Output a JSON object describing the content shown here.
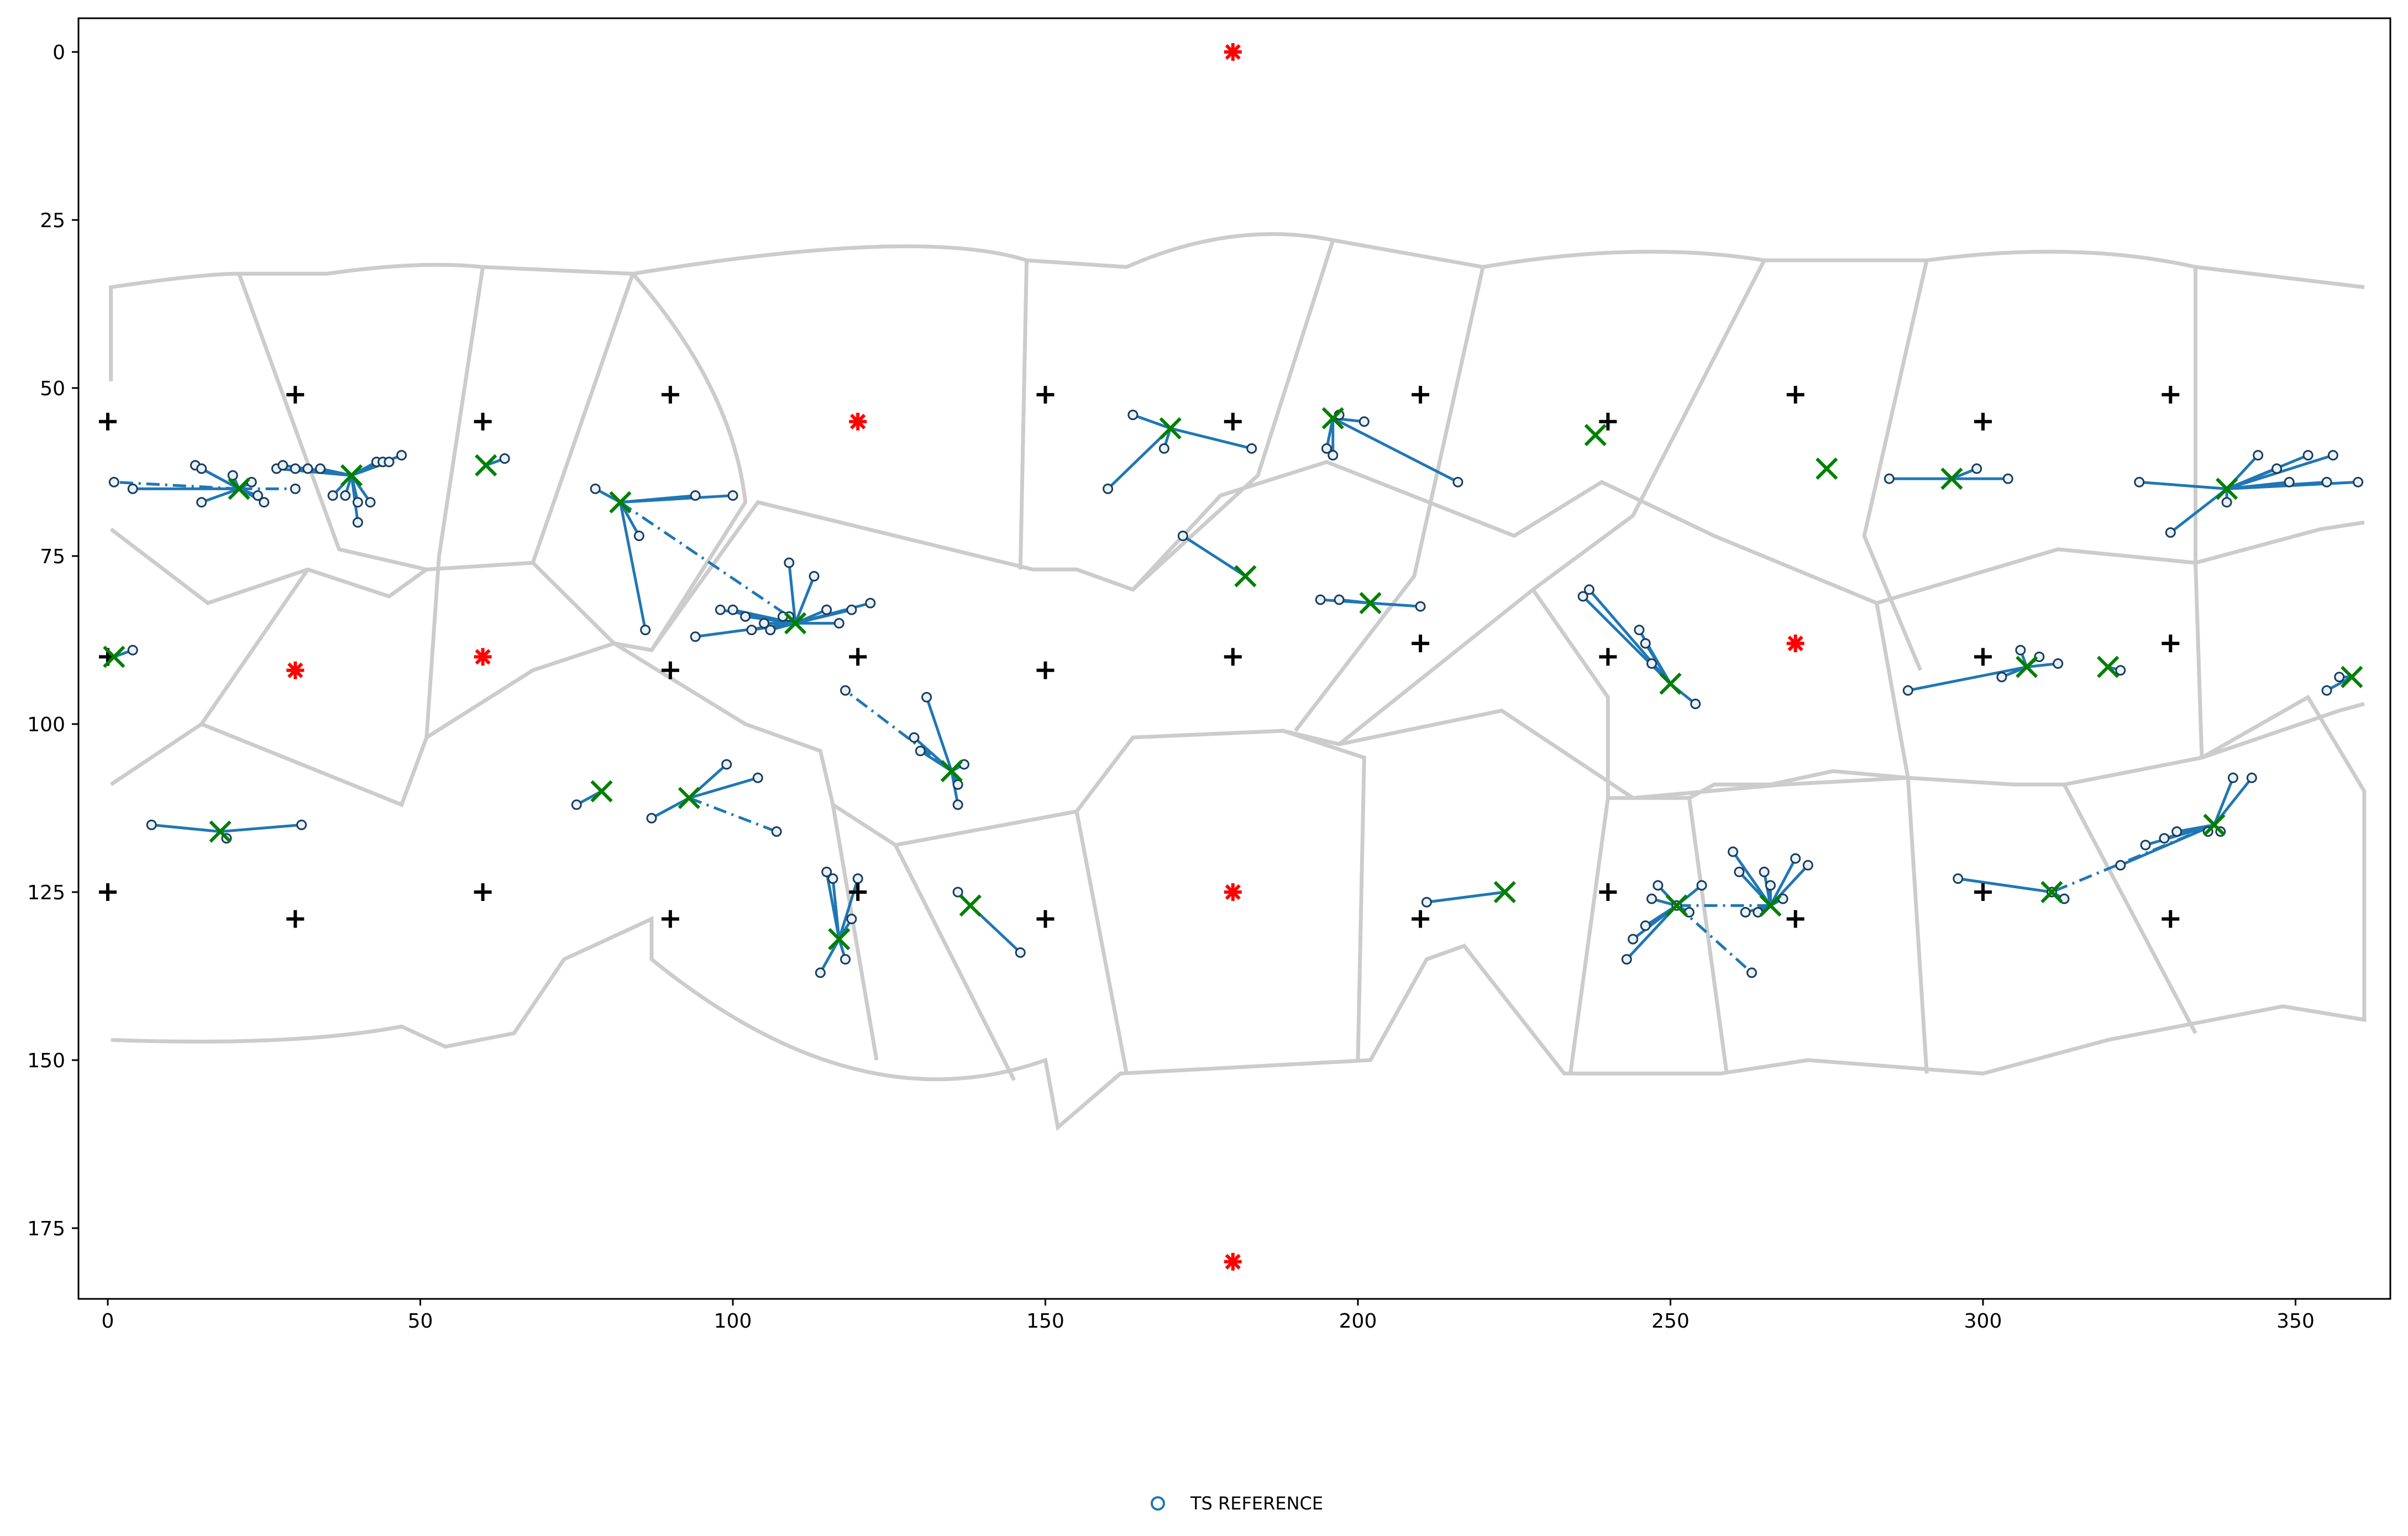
{
  "chart_data": {
    "type": "scatter",
    "title": "",
    "xlabel": "",
    "ylabel": "",
    "xlim": [
      -4,
      362
    ],
    "ylim": [
      185,
      -5
    ],
    "y_inverted": true,
    "xticks": [
      0,
      50,
      100,
      150,
      200,
      250,
      300,
      350
    ],
    "yticks": [
      0,
      25,
      50,
      75,
      100,
      125,
      150,
      175
    ],
    "legend": {
      "placement": "bottom-center",
      "entries": [
        {
          "label": "TS REFERENCE",
          "marker": "open-circle"
        }
      ]
    },
    "colors": {
      "series": "#1f77b4",
      "centroid": "#008000",
      "anchor": "#000000",
      "special": "#ff0000",
      "cell_border": "#cccccc",
      "axes": "#000000"
    },
    "black_plus_points": [
      [
        0,
        55
      ],
      [
        30,
        51
      ],
      [
        60,
        55
      ],
      [
        90,
        51
      ],
      [
        150,
        51
      ],
      [
        180,
        55
      ],
      [
        210,
        51
      ],
      [
        240,
        55
      ],
      [
        270,
        51
      ],
      [
        300,
        55
      ],
      [
        330,
        51
      ],
      [
        0,
        90
      ],
      [
        90,
        92
      ],
      [
        120,
        90
      ],
      [
        150,
        92
      ],
      [
        180,
        90
      ],
      [
        210,
        88
      ],
      [
        240,
        90
      ],
      [
        300,
        90
      ],
      [
        330,
        88
      ],
      [
        0,
        125
      ],
      [
        30,
        129
      ],
      [
        60,
        125
      ],
      [
        90,
        129
      ],
      [
        120,
        125
      ],
      [
        150,
        129
      ],
      [
        210,
        129
      ],
      [
        240,
        125
      ],
      [
        270,
        129
      ],
      [
        300,
        125
      ],
      [
        330,
        129
      ]
    ],
    "red_star_points": [
      [
        180,
        0
      ],
      [
        120,
        55
      ],
      [
        30,
        92
      ],
      [
        60,
        90
      ],
      [
        270,
        88
      ],
      [
        180,
        125
      ],
      [
        180,
        180
      ]
    ],
    "clusters": [
      {
        "centroid": [
          21,
          65
        ],
        "solid": [
          [
            4,
            65
          ],
          [
            14,
            61.5
          ],
          [
            15,
            62
          ],
          [
            15,
            67
          ],
          [
            20,
            63
          ],
          [
            23,
            64
          ],
          [
            24,
            66
          ],
          [
            25,
            67
          ]
        ],
        "dashdot": [
          [
            1,
            64
          ],
          [
            30,
            65
          ]
        ]
      },
      {
        "centroid": [
          39,
          63
        ],
        "solid": [
          [
            27,
            62
          ],
          [
            28,
            61.5
          ],
          [
            30,
            62
          ],
          [
            32,
            62
          ],
          [
            34,
            62
          ],
          [
            36,
            66
          ],
          [
            38,
            66
          ],
          [
            40,
            67
          ],
          [
            40,
            70
          ],
          [
            42,
            67
          ],
          [
            43,
            61
          ],
          [
            44,
            61
          ],
          [
            45,
            61
          ],
          [
            47,
            60
          ]
        ],
        "dashdot": []
      },
      {
        "centroid": [
          60.5,
          61.5
        ],
        "solid": [
          [
            63.5,
            60.5
          ]
        ],
        "dashdot": []
      },
      {
        "centroid": [
          82,
          67
        ],
        "solid": [
          [
            78,
            65
          ],
          [
            85,
            72
          ],
          [
            86,
            86
          ],
          [
            94,
            66
          ],
          [
            100,
            66
          ]
        ],
        "dashdot": [
          [
            109,
            84
          ]
        ]
      },
      {
        "centroid": [
          110,
          85
        ],
        "solid": [
          [
            94,
            87
          ],
          [
            98,
            83
          ],
          [
            100,
            83
          ],
          [
            102,
            84
          ],
          [
            103,
            86
          ],
          [
            105,
            85
          ],
          [
            106,
            86
          ],
          [
            108,
            84
          ],
          [
            109,
            76
          ],
          [
            113,
            78
          ],
          [
            115,
            83
          ],
          [
            117,
            85
          ],
          [
            119,
            83
          ],
          [
            122,
            82
          ]
        ],
        "dashdot": []
      },
      {
        "centroid": [
          135,
          107
        ],
        "solid": [
          [
            129,
            102
          ],
          [
            130,
            104
          ],
          [
            131,
            96
          ],
          [
            136,
            109
          ],
          [
            136,
            112
          ],
          [
            137,
            106
          ]
        ],
        "dashdot": [
          [
            118,
            95
          ]
        ]
      },
      {
        "centroid": [
          93,
          111
        ],
        "solid": [
          [
            87,
            114
          ],
          [
            99,
            106
          ],
          [
            104,
            108
          ]
        ],
        "dashdot": [
          [
            107,
            116
          ]
        ]
      },
      {
        "centroid": [
          79,
          110
        ],
        "solid": [
          [
            75,
            112
          ]
        ],
        "dashdot": []
      },
      {
        "centroid": [
          117,
          132
        ],
        "solid": [
          [
            114,
            137
          ],
          [
            115,
            122
          ],
          [
            116,
            123
          ],
          [
            118,
            135
          ],
          [
            119,
            129
          ],
          [
            120,
            123
          ]
        ],
        "dashdot": []
      },
      {
        "centroid": [
          18,
          116
        ],
        "solid": [
          [
            7,
            115
          ],
          [
            19,
            117
          ],
          [
            31,
            115
          ]
        ],
        "dashdot": []
      },
      {
        "centroid": [
          170,
          56
        ],
        "solid": [
          [
            160,
            65
          ],
          [
            164,
            54
          ],
          [
            169,
            59
          ],
          [
            183,
            59
          ]
        ],
        "dashdot": []
      },
      {
        "centroid": [
          196,
          54.5
        ],
        "solid": [
          [
            195,
            59
          ],
          [
            196,
            60
          ],
          [
            197,
            54
          ],
          [
            201,
            55
          ],
          [
            216,
            64
          ]
        ],
        "dashdot": []
      },
      {
        "centroid": [
          182,
          78
        ],
        "solid": [
          [
            172,
            72
          ]
        ],
        "dashdot": []
      },
      {
        "centroid": [
          202,
          82
        ],
        "solid": [
          [
            194,
            81.5
          ],
          [
            197,
            81.5
          ],
          [
            210,
            82.5
          ]
        ],
        "dashdot": []
      },
      {
        "centroid": [
          138,
          127
        ],
        "solid": [
          [
            136,
            125
          ],
          [
            146,
            134
          ]
        ],
        "dashdot": []
      },
      {
        "centroid": [
          223.5,
          125
        ],
        "solid": [
          [
            211,
            126.5
          ]
        ],
        "dashdot": []
      },
      {
        "centroid": [
          238,
          57
        ],
        "solid": [],
        "dashdot": []
      },
      {
        "centroid": [
          275,
          62
        ],
        "solid": [],
        "dashdot": []
      },
      {
        "centroid": [
          250,
          94
        ],
        "solid": [
          [
            236,
            81
          ],
          [
            237,
            80
          ],
          [
            245,
            86
          ],
          [
            246,
            88
          ],
          [
            247,
            91
          ],
          [
            254,
            97
          ]
        ],
        "dashdot": []
      },
      {
        "centroid": [
          295,
          63.5
        ],
        "solid": [
          [
            285,
            63.5
          ],
          [
            304,
            63.5
          ],
          [
            299,
            62
          ]
        ],
        "dashdot": []
      },
      {
        "centroid": [
          339,
          65
        ],
        "solid": [
          [
            325,
            64
          ],
          [
            330,
            71.5
          ],
          [
            339,
            67
          ],
          [
            344,
            60
          ],
          [
            347,
            62
          ],
          [
            349,
            64
          ],
          [
            352,
            60
          ],
          [
            355,
            64
          ],
          [
            356,
            60
          ],
          [
            360,
            64
          ]
        ],
        "dashdot": []
      },
      {
        "centroid": [
          307,
          91.5
        ],
        "solid": [
          [
            288,
            95
          ],
          [
            303,
            93
          ],
          [
            306,
            89
          ],
          [
            309,
            90
          ],
          [
            312,
            91
          ]
        ],
        "dashdot": []
      },
      {
        "centroid": [
          320,
          91.5
        ],
        "solid": [
          [
            322,
            92
          ]
        ],
        "dashdot": []
      },
      {
        "centroid": [
          359,
          93
        ],
        "solid": [
          [
            355,
            95
          ],
          [
            357,
            93
          ]
        ],
        "dashdot": []
      },
      {
        "centroid": [
          1,
          90
        ],
        "solid": [
          [
            4,
            89
          ]
        ],
        "dashdot": []
      },
      {
        "centroid": [
          251,
          127
        ],
        "solid": [
          [
            243,
            135
          ],
          [
            244,
            132
          ],
          [
            246,
            130
          ],
          [
            247,
            126
          ],
          [
            248,
            124
          ],
          [
            253,
            128
          ],
          [
            255,
            124
          ]
        ],
        "dashdot": [
          [
            263,
            137
          ]
        ]
      },
      {
        "centroid": [
          266,
          127
        ],
        "solid": [
          [
            260,
            119
          ],
          [
            261,
            122
          ],
          [
            262,
            128
          ],
          [
            264,
            128
          ],
          [
            265,
            122
          ],
          [
            266,
            124
          ],
          [
            268,
            126
          ],
          [
            270,
            120
          ],
          [
            272,
            121
          ]
        ],
        "dashdot": [
          [
            251,
            127
          ]
        ]
      },
      {
        "centroid": [
          311,
          125
        ],
        "solid": [
          [
            296,
            123
          ],
          [
            313,
            126
          ]
        ],
        "dashdot": []
      },
      {
        "centroid": [
          337,
          115
        ],
        "solid": [
          [
            322,
            121
          ],
          [
            326,
            118
          ],
          [
            329,
            117
          ],
          [
            331,
            116
          ],
          [
            340,
            108
          ],
          [
            343,
            108
          ],
          [
            336,
            116
          ],
          [
            338,
            116
          ]
        ],
        "dashdot": [
          [
            311,
            125
          ]
        ]
      }
    ]
  }
}
